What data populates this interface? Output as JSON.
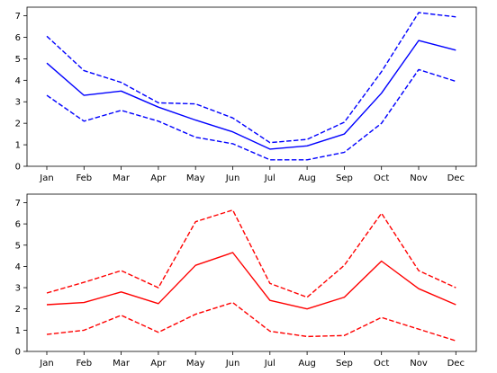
{
  "chart_data": [
    {
      "type": "line",
      "categories": [
        "Jan",
        "Feb",
        "Mar",
        "Apr",
        "May",
        "Jun",
        "Jul",
        "Aug",
        "Sep",
        "Oct",
        "Nov",
        "Dec"
      ],
      "ylim": [
        0,
        7.4
      ],
      "yticks": [
        0,
        1,
        2,
        3,
        4,
        5,
        6,
        7
      ],
      "grid": false,
      "series": [
        {
          "style": "solid",
          "color": "#0000ff",
          "values": [
            4.8,
            3.3,
            3.5,
            2.75,
            2.15,
            1.6,
            0.8,
            0.95,
            1.5,
            3.4,
            5.85,
            5.4
          ]
        },
        {
          "style": "dashed",
          "color": "#0000ff",
          "values": [
            6.05,
            4.45,
            3.9,
            2.95,
            2.9,
            2.25,
            1.1,
            1.25,
            2.05,
            4.4,
            7.15,
            6.95
          ]
        },
        {
          "style": "dashed",
          "color": "#0000ff",
          "values": [
            3.3,
            2.1,
            2.6,
            2.1,
            1.35,
            1.05,
            0.3,
            0.3,
            0.65,
            2.0,
            4.5,
            3.95
          ]
        }
      ]
    },
    {
      "type": "line",
      "categories": [
        "Jan",
        "Feb",
        "Mar",
        "Apr",
        "May",
        "Jun",
        "Jul",
        "Aug",
        "Sep",
        "Oct",
        "Nov",
        "Dec"
      ],
      "ylim": [
        0,
        7.4
      ],
      "yticks": [
        0,
        1,
        2,
        3,
        4,
        5,
        6,
        7
      ],
      "grid": false,
      "series": [
        {
          "style": "solid",
          "color": "#ff0000",
          "values": [
            2.2,
            2.3,
            2.8,
            2.25,
            4.05,
            4.65,
            2.4,
            2.0,
            2.55,
            4.25,
            2.95,
            2.2
          ]
        },
        {
          "style": "dashed",
          "color": "#ff0000",
          "values": [
            2.75,
            3.25,
            3.8,
            3.0,
            6.1,
            6.65,
            3.2,
            2.55,
            4.05,
            6.5,
            3.8,
            3.0
          ]
        },
        {
          "style": "dashed",
          "color": "#ff0000",
          "values": [
            0.8,
            1.0,
            1.7,
            0.9,
            1.75,
            2.3,
            0.95,
            0.7,
            0.75,
            1.6,
            1.05,
            0.5
          ]
        }
      ]
    }
  ]
}
